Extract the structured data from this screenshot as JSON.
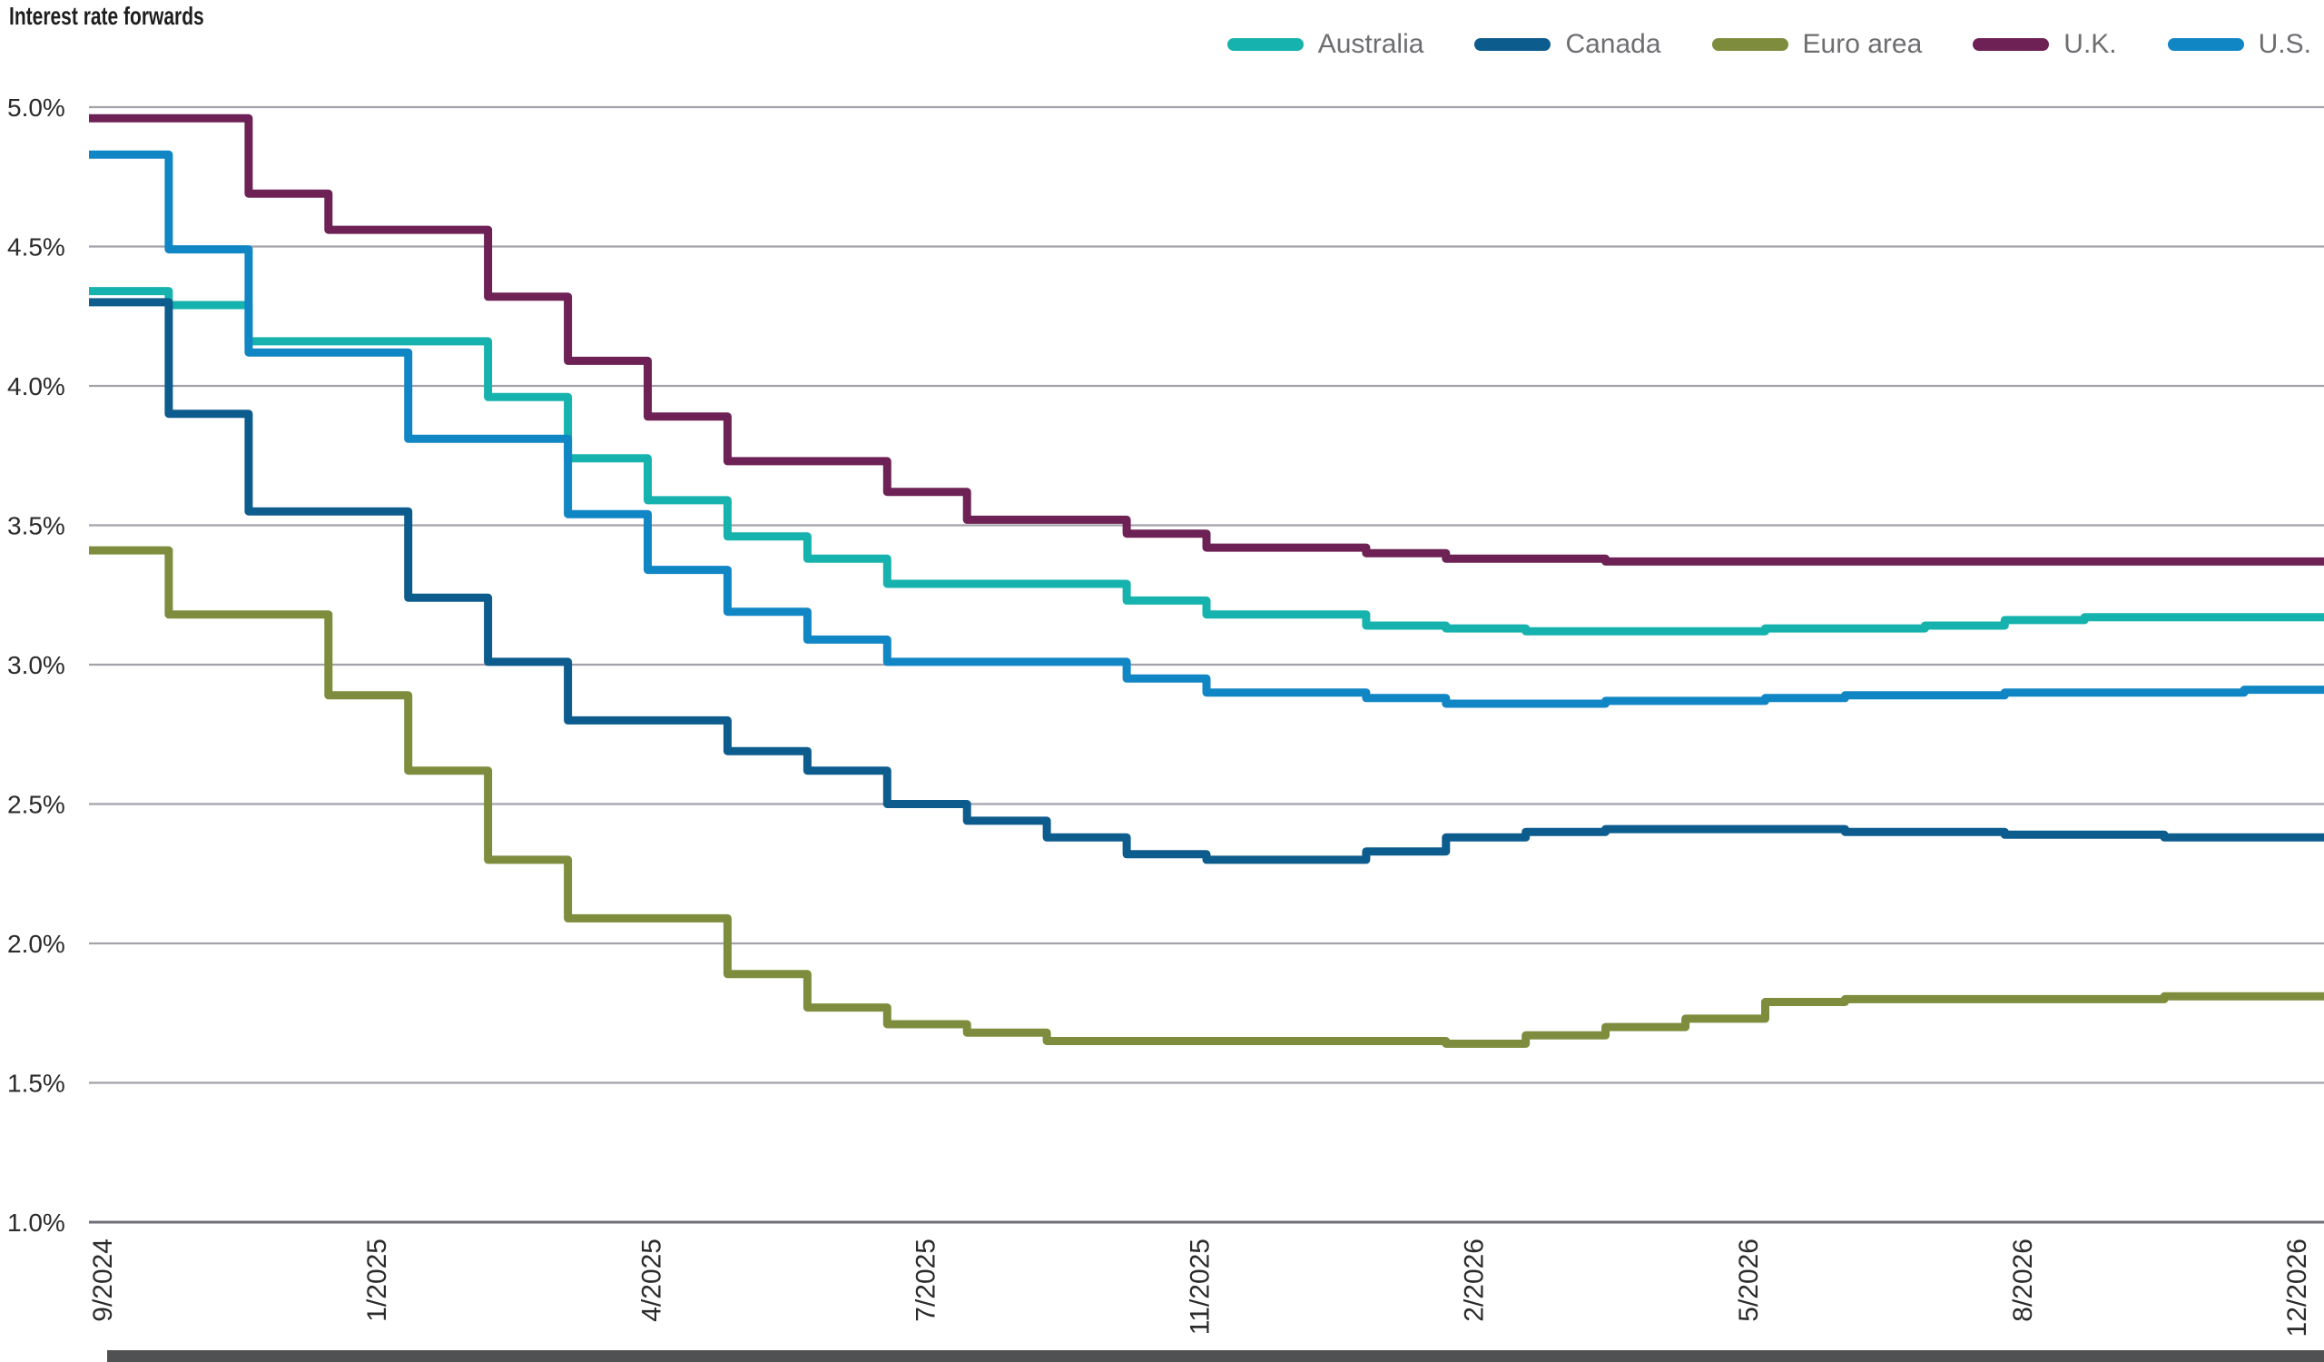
{
  "page": {
    "background": "#ffffff",
    "bottom_bar_color": "#505153"
  },
  "chart_data": {
    "type": "line",
    "line_style": "step-after",
    "title": "Interest rate forwards",
    "xlabel": "",
    "ylabel": "",
    "ylim": [
      1.0,
      5.0
    ],
    "grid": "horizontal",
    "gridline_color": "#a5a1ab",
    "baseline_color": "#6f6d76",
    "axis_text_color": "#2b2b2b",
    "legend_text_color": "#6d6e71",
    "legend_position": "top-right",
    "y_ticks": [
      "5.0%",
      "4.5%",
      "4.0%",
      "3.5%",
      "3.0%",
      "2.5%",
      "2.0%",
      "1.5%",
      "1.0%"
    ],
    "x": [
      "9/2024",
      "10/2024",
      "11/2024",
      "12/2024",
      "1/2025",
      "2/2025",
      "3/2025",
      "4/2025",
      "5/2025",
      "6/2025",
      "7/2025",
      "8/2025",
      "9/2025",
      "10/2025",
      "11/2025",
      "12/2025",
      "1/2026",
      "2/2026",
      "3/2026",
      "4/2026",
      "5/2026",
      "6/2026",
      "7/2026",
      "8/2026",
      "9/2026",
      "10/2026",
      "11/2026",
      "12/2026"
    ],
    "x_tick_labels": [
      "9/2024",
      "1/2025",
      "4/2025",
      "7/2025",
      "11/2025",
      "2/2026",
      "5/2026",
      "8/2026",
      "12/2026"
    ],
    "series": [
      {
        "name": "Australia",
        "color": "#16b3ae",
        "values": [
          4.34,
          4.29,
          4.16,
          4.16,
          4.16,
          3.96,
          3.74,
          3.59,
          3.46,
          3.38,
          3.29,
          3.29,
          3.29,
          3.23,
          3.18,
          3.18,
          3.14,
          3.13,
          3.12,
          3.12,
          3.12,
          3.13,
          3.13,
          3.14,
          3.16,
          3.17,
          3.17,
          3.17
        ]
      },
      {
        "name": "Canada",
        "color": "#0d5c8e",
        "values": [
          4.3,
          3.9,
          3.55,
          3.55,
          3.24,
          3.01,
          2.8,
          2.8,
          2.69,
          2.62,
          2.5,
          2.44,
          2.38,
          2.32,
          2.3,
          2.3,
          2.33,
          2.38,
          2.4,
          2.41,
          2.41,
          2.41,
          2.4,
          2.4,
          2.39,
          2.39,
          2.38,
          2.38
        ]
      },
      {
        "name": "Euro area",
        "color": "#7d8d3d",
        "values": [
          3.41,
          3.18,
          3.18,
          2.89,
          2.62,
          2.3,
          2.09,
          2.09,
          1.89,
          1.77,
          1.71,
          1.68,
          1.65,
          1.65,
          1.65,
          1.65,
          1.65,
          1.64,
          1.67,
          1.7,
          1.73,
          1.79,
          1.8,
          1.8,
          1.8,
          1.8,
          1.81,
          1.81
        ]
      },
      {
        "name": "U.K.",
        "color": "#6d2155",
        "values": [
          4.96,
          4.96,
          4.69,
          4.56,
          4.56,
          4.32,
          4.09,
          3.89,
          3.73,
          3.73,
          3.62,
          3.52,
          3.52,
          3.47,
          3.42,
          3.42,
          3.4,
          3.38,
          3.38,
          3.37,
          3.37,
          3.37,
          3.37,
          3.37,
          3.37,
          3.37,
          3.37,
          3.37
        ]
      },
      {
        "name": "U.S.",
        "color": "#1186c5",
        "values": [
          4.83,
          4.49,
          4.12,
          4.12,
          3.81,
          3.81,
          3.54,
          3.34,
          3.19,
          3.09,
          3.01,
          3.01,
          3.01,
          2.95,
          2.9,
          2.9,
          2.88,
          2.86,
          2.86,
          2.87,
          2.87,
          2.88,
          2.89,
          2.89,
          2.9,
          2.9,
          2.9,
          2.91
        ]
      }
    ]
  }
}
